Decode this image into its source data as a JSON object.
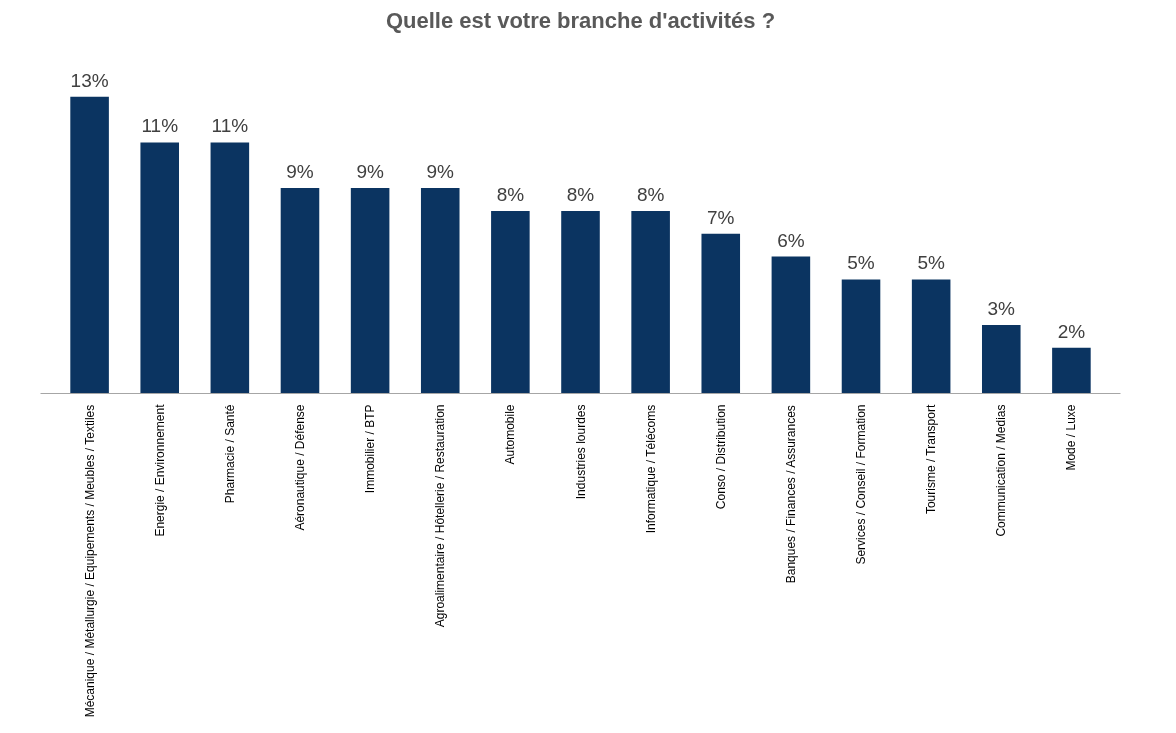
{
  "chart_data": {
    "type": "bar",
    "title": "Quelle est votre branche d'activités ?",
    "categories": [
      "Mécanique / Métallurgie / Equipements / Meubles / Textiles",
      "Energie / Environnement",
      "Pharmacie / Santé",
      "Aéronautique / Défense",
      "Immobilier / BTP",
      "Agroalimentaire / Hôtellerie / Restauration",
      "Automobile",
      "Industries lourdes",
      "Informatique / Télécoms",
      "Conso / Distribution",
      "Banques / Finances / Assurances",
      "Services / Conseil / Formation",
      "Tourisme / Transport",
      "Communication / Medias",
      "Mode / Luxe"
    ],
    "values": [
      13,
      11,
      11,
      9,
      9,
      9,
      8,
      8,
      8,
      7,
      6,
      5,
      5,
      3,
      2
    ],
    "value_labels": [
      "13%",
      "11%",
      "11%",
      "9%",
      "9%",
      "9%",
      "8%",
      "8%",
      "8%",
      "7%",
      "6%",
      "5%",
      "5%",
      "3%",
      "2%"
    ],
    "color": "#0b3461",
    "grid": false,
    "tick_labels": "x"
  }
}
